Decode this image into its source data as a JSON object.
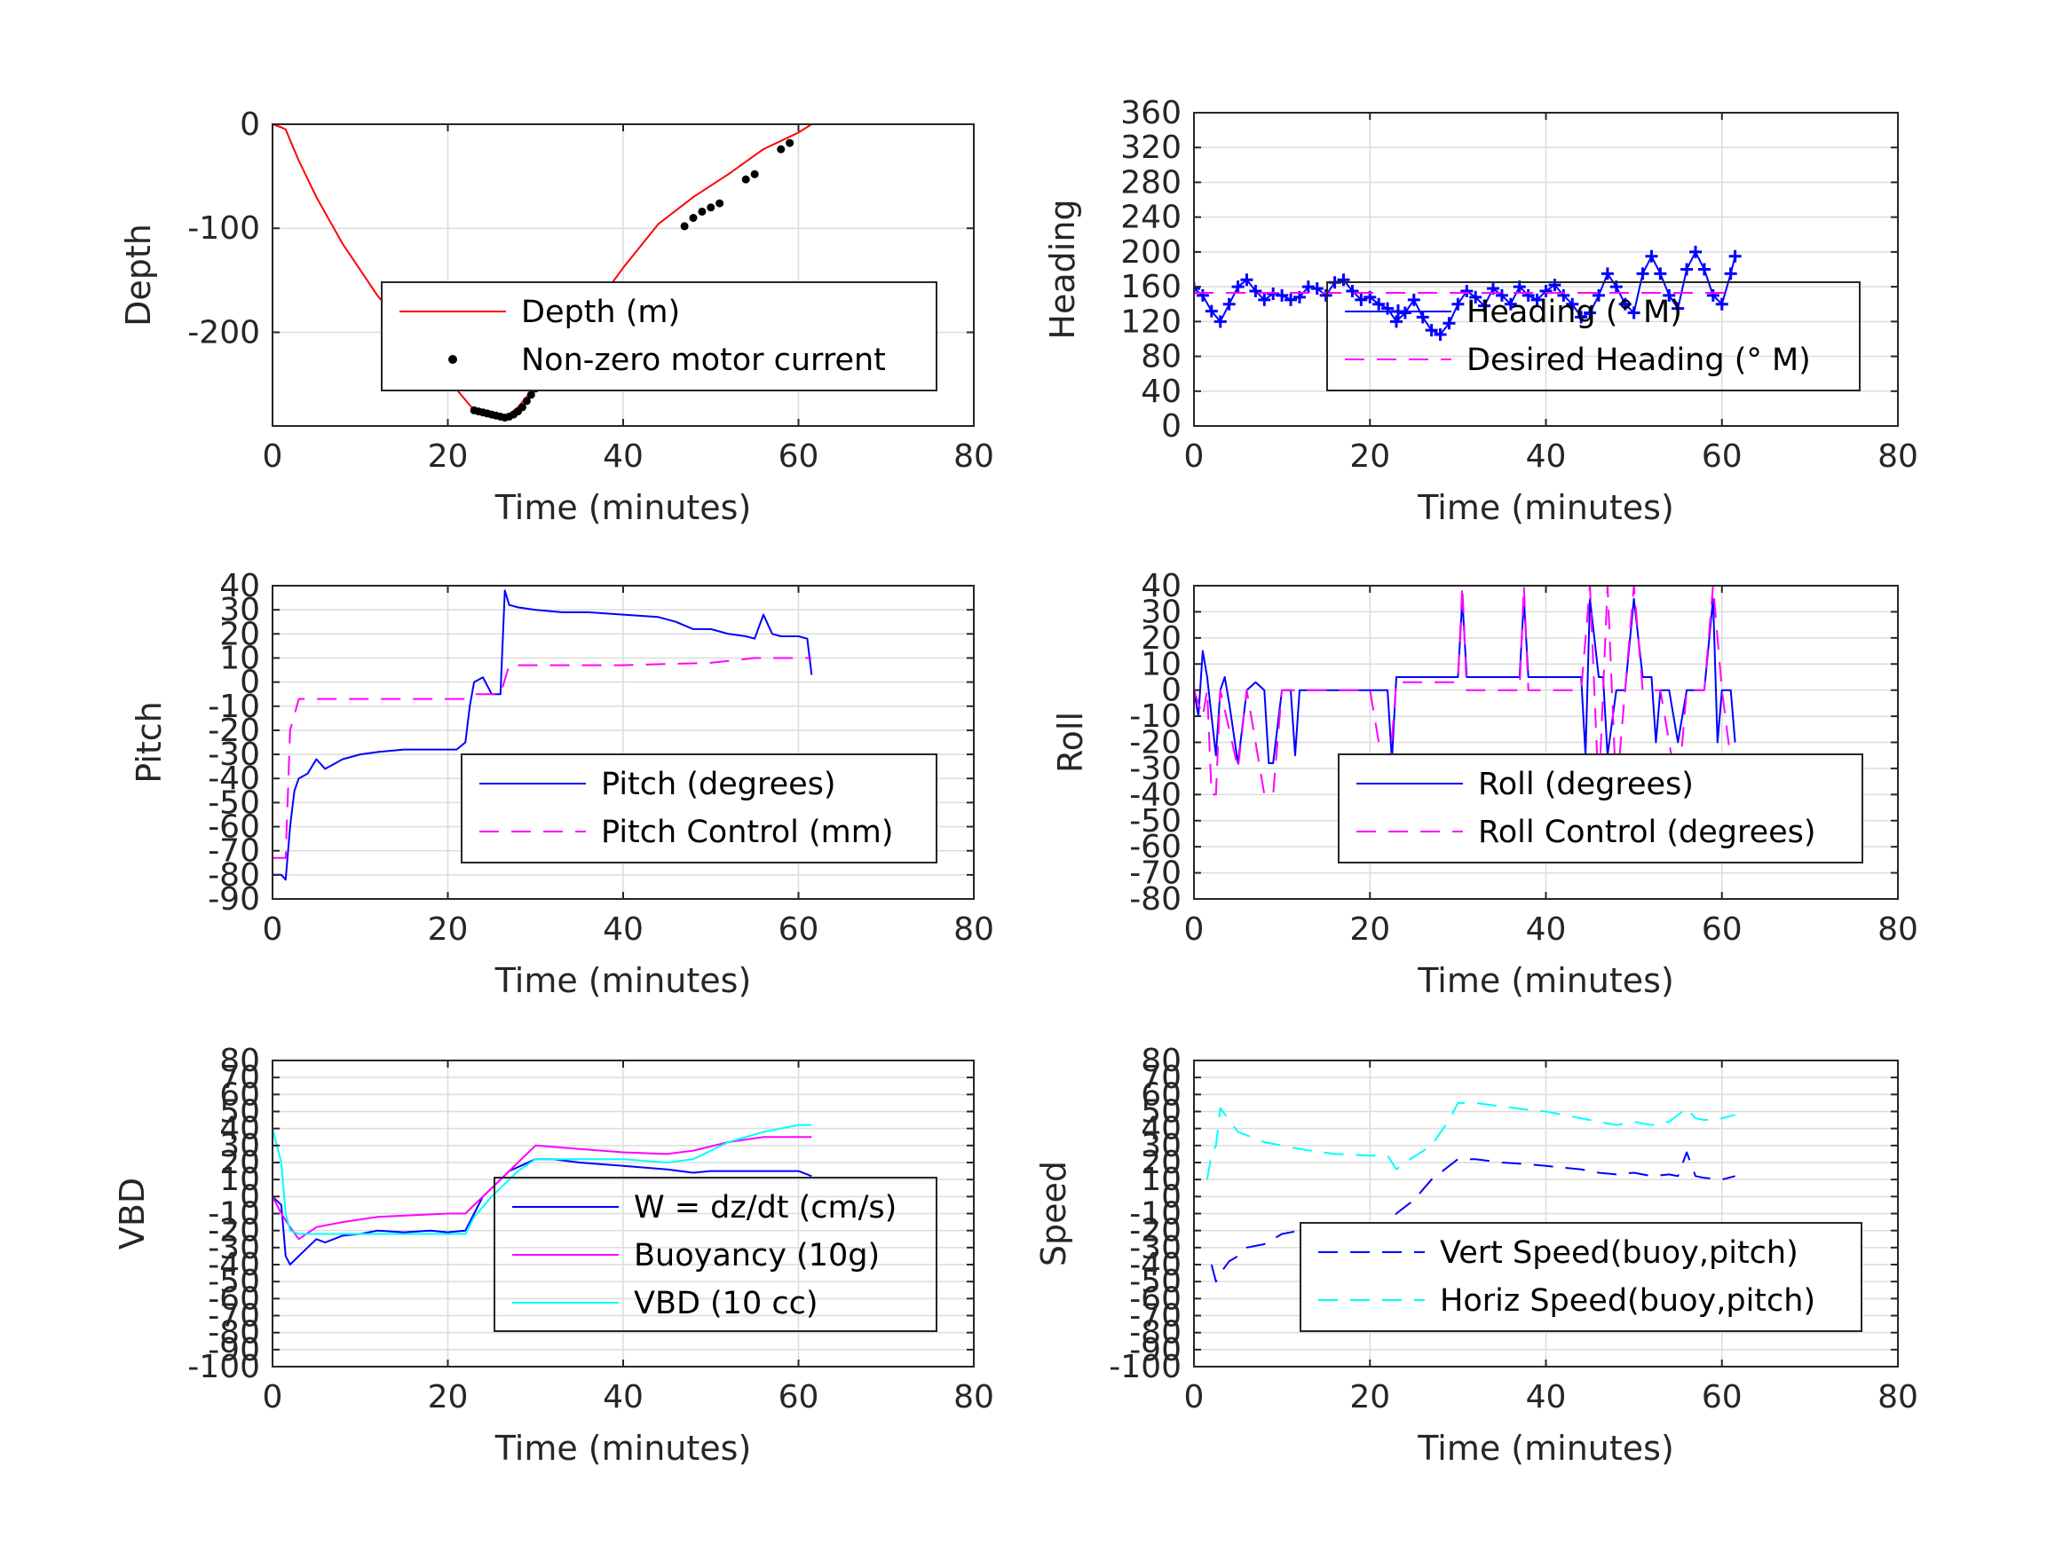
{
  "figure": {
    "background": "#ffffff"
  },
  "chart_data": [
    {
      "id": "depth",
      "type": "line",
      "xlabel": "Time (minutes)",
      "ylabel": "Depth",
      "xlim": [
        0,
        80
      ],
      "ylim": [
        -290,
        0
      ],
      "xticks": [
        0,
        20,
        40,
        60,
        80
      ],
      "yticks": [
        0,
        -100,
        -200
      ],
      "legend_position": "center-right",
      "series": [
        {
          "name": "Depth (m)",
          "style": "line",
          "color": "#ff0000",
          "x": [
            0,
            1,
            1.5,
            3,
            5,
            8,
            12,
            16,
            20,
            23,
            25,
            26.5,
            28,
            30,
            33,
            36,
            40,
            44,
            48,
            52,
            56,
            60,
            61.5
          ],
          "y": [
            0,
            -3,
            -5,
            -35,
            -70,
            -115,
            -165,
            -205,
            -245,
            -275,
            -282,
            -282,
            -272,
            -252,
            -218,
            -184,
            -138,
            -96,
            -70,
            -48,
            -24,
            -8,
            0
          ]
        },
        {
          "name": "Non-zero motor current",
          "style": "markers",
          "color": "#000000",
          "x": [
            23,
            23.5,
            24,
            24.5,
            25,
            25.5,
            26,
            26.5,
            27,
            27.5,
            28,
            28.5,
            29,
            29.5,
            30,
            47,
            48,
            49,
            50,
            51,
            54,
            55,
            58,
            59
          ],
          "y": [
            -275,
            -276,
            -277,
            -278,
            -279,
            -280,
            -281,
            -282,
            -281,
            -279,
            -276,
            -272,
            -266,
            -260,
            -254,
            -98,
            -90,
            -84,
            -80,
            -76,
            -53,
            -48,
            -24,
            -18
          ]
        }
      ]
    },
    {
      "id": "heading",
      "type": "line",
      "xlabel": "Time (minutes)",
      "ylabel": "Heading",
      "xlim": [
        0,
        80
      ],
      "ylim": [
        0,
        360
      ],
      "xticks": [
        0,
        20,
        40,
        60,
        80
      ],
      "yticks": [
        0,
        40,
        80,
        120,
        160,
        200,
        240,
        280,
        320,
        360
      ],
      "legend_position": "center-right",
      "series": [
        {
          "name": "Heading (° M)",
          "style": "line+plus",
          "color": "#0000ff",
          "x": [
            0,
            1,
            2,
            3,
            4,
            5,
            6,
            7,
            8,
            9,
            10,
            11,
            12,
            13,
            14,
            15,
            16,
            17,
            18,
            19,
            20,
            21,
            22,
            23,
            24,
            25,
            26,
            27,
            28,
            29,
            30,
            31,
            32,
            33,
            34,
            35,
            36,
            37,
            38,
            39,
            40,
            41,
            42,
            43,
            44,
            45,
            46,
            47,
            48,
            49,
            50,
            51,
            52,
            53,
            54,
            55,
            56,
            57,
            58,
            59,
            60,
            61,
            61.5
          ],
          "y": [
            158,
            150,
            132,
            120,
            140,
            160,
            168,
            155,
            145,
            152,
            150,
            145,
            148,
            160,
            158,
            150,
            165,
            168,
            155,
            145,
            148,
            140,
            135,
            120,
            130,
            145,
            125,
            110,
            105,
            118,
            140,
            155,
            148,
            138,
            158,
            150,
            140,
            160,
            150,
            145,
            155,
            162,
            150,
            140,
            125,
            130,
            150,
            175,
            160,
            140,
            130,
            175,
            195,
            175,
            150,
            135,
            180,
            200,
            180,
            150,
            140,
            175,
            195
          ]
        },
        {
          "name": "Desired Heading (° M)",
          "style": "dashed",
          "color": "#ff00ff",
          "x": [
            0,
            61.5
          ],
          "y": [
            153,
            153
          ]
        }
      ]
    },
    {
      "id": "pitch",
      "type": "line",
      "xlabel": "Time (minutes)",
      "ylabel": "Pitch",
      "xlim": [
        0,
        80
      ],
      "ylim": [
        -90,
        40
      ],
      "xticks": [
        0,
        20,
        40,
        60,
        80
      ],
      "yticks": [
        40,
        30,
        20,
        10,
        0,
        -10,
        -20,
        -30,
        -40,
        -50,
        -60,
        -70,
        -80,
        -90
      ],
      "legend_position": "bottom-right",
      "series": [
        {
          "name": "Pitch (degrees)",
          "style": "line",
          "color": "#0000ff",
          "x": [
            0,
            1,
            1.5,
            2,
            2.5,
            3,
            4,
            5,
            6,
            8,
            10,
            12,
            15,
            18,
            20,
            21,
            22,
            22.5,
            23,
            24,
            25,
            26,
            26.5,
            27,
            28,
            30,
            33,
            36,
            40,
            44,
            46,
            48,
            50,
            52,
            54,
            55,
            56,
            57,
            58,
            60,
            61,
            61.5
          ],
          "y": [
            -80,
            -80,
            -82,
            -60,
            -45,
            -40,
            -38,
            -32,
            -36,
            -32,
            -30,
            -29,
            -28,
            -28,
            -28,
            -28,
            -25,
            -10,
            0,
            2,
            -5,
            -5,
            38,
            32,
            31,
            30,
            29,
            29,
            28,
            27,
            25,
            22,
            22,
            20,
            19,
            18,
            28,
            20,
            19,
            19,
            18,
            3
          ]
        },
        {
          "name": "Pitch Control (mm)",
          "style": "dashed",
          "color": "#ff00ff",
          "x": [
            0,
            1.5,
            2,
            3,
            10,
            20,
            22,
            23,
            26,
            27,
            30,
            40,
            50,
            55,
            60,
            61.5
          ],
          "y": [
            -73,
            -73,
            -20,
            -7,
            -7,
            -7,
            -7,
            -5,
            -5,
            7,
            7,
            7,
            8,
            10,
            10,
            10
          ]
        }
      ]
    },
    {
      "id": "roll",
      "type": "line",
      "xlabel": "Time (minutes)",
      "ylabel": "Roll",
      "xlim": [
        0,
        80
      ],
      "ylim": [
        -80,
        40
      ],
      "xticks": [
        0,
        20,
        40,
        60,
        80
      ],
      "yticks": [
        40,
        30,
        20,
        10,
        0,
        -10,
        -20,
        -30,
        -40,
        -50,
        -60,
        -70,
        -80
      ],
      "legend_position": "bottom-right",
      "series": [
        {
          "name": "Roll (degrees)",
          "style": "line",
          "color": "#0000ff",
          "x": [
            0,
            0.5,
            1,
            1.5,
            2,
            2.5,
            3,
            3.5,
            4,
            5,
            6,
            7,
            8,
            8.5,
            9,
            10,
            11,
            11.5,
            12,
            14,
            16,
            18,
            20,
            21,
            22,
            22.5,
            23,
            24,
            26,
            28,
            29,
            30,
            30.5,
            31,
            32,
            34,
            36,
            37,
            37.5,
            38,
            40,
            42,
            44,
            44.5,
            45,
            46,
            46.5,
            47,
            48,
            49,
            50,
            51,
            52,
            52.5,
            53,
            54,
            55,
            56,
            57,
            58,
            59,
            59.5,
            60,
            61,
            61.5
          ],
          "y": [
            0,
            -10,
            15,
            5,
            -10,
            -25,
            0,
            5,
            -5,
            -28,
            0,
            3,
            0,
            -28,
            -28,
            0,
            0,
            -25,
            0,
            0,
            0,
            0,
            0,
            0,
            0,
            -27,
            5,
            5,
            5,
            5,
            5,
            5,
            35,
            5,
            5,
            5,
            5,
            5,
            35,
            5,
            5,
            5,
            5,
            -25,
            35,
            5,
            5,
            -25,
            0,
            0,
            35,
            5,
            5,
            -20,
            0,
            0,
            -20,
            0,
            0,
            0,
            35,
            -20,
            0,
            0,
            -20
          ]
        },
        {
          "name": "Roll Control (degrees)",
          "style": "dashed",
          "color": "#ff00ff",
          "x": [
            0,
            1,
            1.5,
            2,
            2.5,
            3,
            5,
            6,
            8,
            9,
            10,
            12,
            20,
            22,
            23,
            30,
            30.5,
            31,
            37,
            37.5,
            38,
            44,
            45,
            46,
            47,
            48,
            50,
            51,
            53,
            55,
            56,
            58,
            59,
            60,
            61.5
          ],
          "y": [
            0,
            -10,
            0,
            -40,
            -40,
            0,
            -30,
            0,
            -40,
            -40,
            0,
            0,
            0,
            -40,
            3,
            3,
            40,
            0,
            0,
            40,
            0,
            0,
            40,
            -40,
            40,
            -40,
            40,
            0,
            0,
            -40,
            0,
            0,
            40,
            0,
            -40
          ]
        }
      ]
    },
    {
      "id": "vbd",
      "type": "line",
      "xlabel": "Time (minutes)",
      "ylabel": "VBD",
      "xlim": [
        0,
        80
      ],
      "ylim": [
        -100,
        80
      ],
      "xticks": [
        0,
        20,
        40,
        60,
        80
      ],
      "yticks": [
        80,
        70,
        60,
        50,
        40,
        30,
        20,
        10,
        0,
        -10,
        -20,
        -30,
        -40,
        -50,
        -60,
        -70,
        -80,
        -90,
        -100
      ],
      "yticklabels": [
        "80",
        "70",
        "60",
        "50",
        "40",
        "30",
        "20",
        "10",
        "0",
        "-10",
        "-20",
        "-30",
        "-40",
        "-50",
        "-60",
        "-70",
        "-80",
        "-90",
        "-100"
      ],
      "legend_position": "bottom-right",
      "series": [
        {
          "name": "W = dz/dt (cm/s)",
          "style": "line",
          "color": "#0000ff",
          "x": [
            0,
            1,
            1.5,
            2,
            3,
            4,
            5,
            6,
            8,
            10,
            12,
            15,
            18,
            20,
            22,
            23,
            24,
            25,
            27,
            30,
            32,
            35,
            40,
            45,
            48,
            50,
            55,
            60,
            61.5
          ],
          "y": [
            0,
            -5,
            -35,
            -40,
            -35,
            -30,
            -25,
            -27,
            -23,
            -22,
            -20,
            -21,
            -20,
            -21,
            -20,
            -10,
            0,
            5,
            15,
            22,
            22,
            20,
            18,
            16,
            14,
            15,
            15,
            15,
            12
          ]
        },
        {
          "name": "Buoyancy (10g)",
          "style": "line",
          "color": "#ff00ff",
          "x": [
            0,
            1,
            2,
            3,
            5,
            8,
            12,
            16,
            20,
            22,
            23,
            25,
            28,
            30,
            35,
            40,
            45,
            48,
            52,
            56,
            60,
            61.5
          ],
          "y": [
            0,
            -10,
            -18,
            -25,
            -18,
            -15,
            -12,
            -11,
            -10,
            -10,
            -5,
            5,
            20,
            30,
            28,
            26,
            25,
            27,
            32,
            35,
            35,
            35
          ]
        },
        {
          "name": "VBD (10 cc)",
          "style": "line",
          "color": "#00ffff",
          "x": [
            0,
            1,
            1.5,
            2,
            3,
            5,
            8,
            12,
            16,
            20,
            22,
            23,
            25,
            28,
            30,
            35,
            40,
            45,
            48,
            52,
            56,
            60,
            61.5
          ],
          "y": [
            40,
            20,
            -10,
            -20,
            -22,
            -22,
            -22,
            -22,
            -22,
            -22,
            -22,
            -12,
            0,
            15,
            22,
            22,
            22,
            20,
            22,
            32,
            38,
            42,
            42
          ]
        }
      ]
    },
    {
      "id": "speed",
      "type": "line",
      "xlabel": "Time (minutes)",
      "ylabel": "Speed",
      "xlim": [
        0,
        80
      ],
      "ylim": [
        -100,
        80
      ],
      "xticks": [
        0,
        20,
        40,
        60,
        80
      ],
      "yticks": [
        80,
        70,
        60,
        50,
        40,
        30,
        20,
        10,
        0,
        -10,
        -20,
        -30,
        -40,
        -50,
        -60,
        -70,
        -80,
        -90,
        -100
      ],
      "yticklabels": [
        "80",
        "70",
        "60",
        "50",
        "40",
        "30",
        "20",
        "10",
        "0",
        "-10",
        "-20",
        "-30",
        "-40",
        "-50",
        "-60",
        "-70",
        "-80",
        "-90",
        "-100"
      ],
      "legend_position": "bottom-right",
      "series": [
        {
          "name": "Vert Speed(buoy,pitch)",
          "style": "dashed",
          "color": "#0000ff",
          "x": [
            2,
            2.5,
            3,
            4,
            5,
            6,
            8,
            10,
            12,
            14,
            16,
            18,
            20,
            22,
            23,
            25,
            27,
            30,
            32,
            35,
            38,
            40,
            44,
            46,
            48,
            50,
            52,
            54,
            55,
            56,
            57,
            58,
            60,
            61.5
          ],
          "y": [
            -40,
            -50,
            -45,
            -38,
            -35,
            -30,
            -28,
            -22,
            -20,
            -20,
            -20,
            -19,
            -19,
            -18,
            -10,
            -2,
            10,
            22,
            22,
            20,
            19,
            18,
            16,
            14,
            13,
            14,
            12,
            13,
            12,
            26,
            12,
            11,
            10,
            12
          ]
        },
        {
          "name": "Horiz Speed(buoy,pitch)",
          "style": "dashed",
          "color": "#00ffff",
          "x": [
            1.5,
            2,
            2.5,
            3,
            5,
            8,
            12,
            16,
            20,
            22,
            23,
            24,
            27,
            29,
            30,
            32,
            35,
            38,
            40,
            44,
            46,
            48,
            50,
            52,
            54,
            56,
            57,
            58,
            60,
            61.5
          ],
          "y": [
            10,
            25,
            30,
            52,
            38,
            32,
            28,
            25,
            24,
            24,
            16,
            20,
            30,
            45,
            55,
            55,
            53,
            51,
            50,
            46,
            44,
            42,
            44,
            42,
            44,
            52,
            46,
            45,
            46,
            48
          ]
        }
      ]
    }
  ]
}
